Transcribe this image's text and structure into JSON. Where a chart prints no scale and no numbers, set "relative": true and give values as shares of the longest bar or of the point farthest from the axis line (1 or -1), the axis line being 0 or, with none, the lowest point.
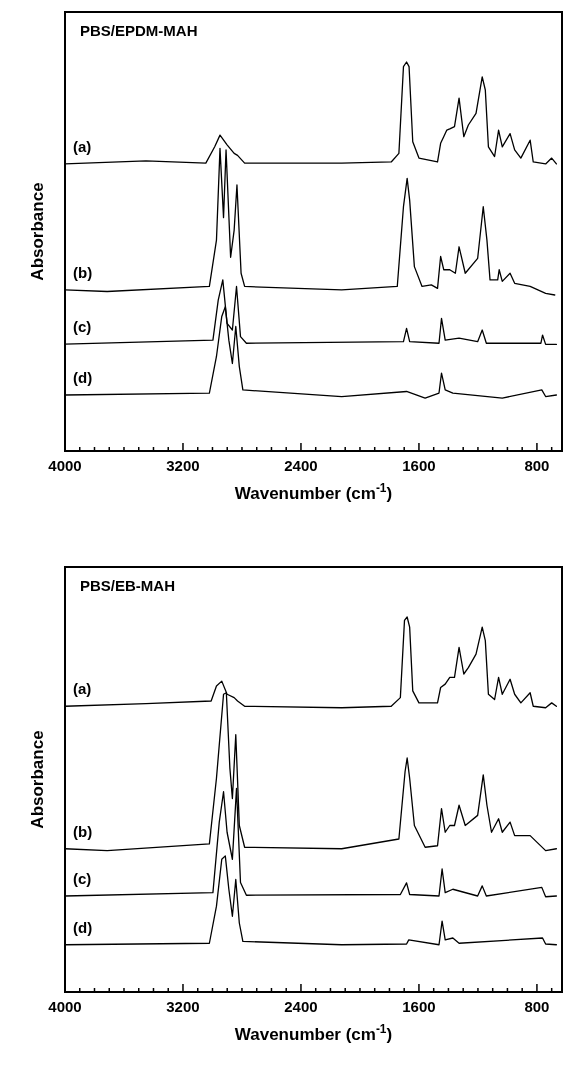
{
  "chart_data": [
    {
      "type": "line",
      "title": "PBS/EPDM-MAH",
      "xlabel": "Wavenumber (cm$^{-1}$)",
      "ylabel": "Absorbance",
      "relative": true,
      "xlim": [
        4000,
        630
      ],
      "xticks": [
        4000,
        {
          "value": 3900,
          "label": null
        },
        {
          "value": 3800,
          "label": null
        },
        {
          "value": 3700,
          "label": null
        },
        {
          "value": 3600,
          "label": null
        },
        {
          "value": 3500,
          "label": null
        },
        {
          "value": 3400,
          "label": null
        },
        {
          "value": 3300,
          "label": null
        },
        3200,
        {
          "value": 3100,
          "label": null
        },
        {
          "value": 3000,
          "label": null
        },
        {
          "value": 2900,
          "label": null
        },
        {
          "value": 2800,
          "label": null
        },
        {
          "value": 2700,
          "label": null
        },
        {
          "value": 2600,
          "label": null
        },
        {
          "value": 2500,
          "label": null
        },
        2400,
        {
          "value": 2300,
          "label": null
        },
        {
          "value": 2200,
          "label": null
        },
        {
          "value": 2100,
          "label": null
        },
        {
          "value": 2000,
          "label": null
        },
        {
          "value": 1900,
          "label": null
        },
        {
          "value": 1800,
          "label": null
        },
        {
          "value": 1700,
          "label": null
        },
        1600,
        {
          "value": 1500,
          "label": null
        },
        {
          "value": 1400,
          "label": null
        },
        {
          "value": 1300,
          "label": null
        },
        {
          "value": 1200,
          "label": null
        },
        {
          "value": 1100,
          "label": null
        },
        {
          "value": 1000,
          "label": null
        },
        {
          "value": 900,
          "label": null
        },
        800,
        {
          "value": 700,
          "label": null
        }
      ],
      "series": [
        {
          "name": "(a)",
          "color": "#000000",
          "x": [
            4000,
            3451,
            3045,
            2985,
            2949,
            2901,
            2853,
            2830,
            2782,
            2124,
            1788,
            1736,
            1705,
            1684,
            1667,
            1642,
            1600,
            1474,
            1453,
            1432,
            1411,
            1391,
            1359,
            1328,
            1296,
            1265,
            1213,
            1171,
            1150,
            1129,
            1087,
            1060,
            1035,
            982,
            951,
            909,
            846,
            825,
            741,
            700,
            668
          ],
          "values": [
            0.738,
            0.746,
            0.74,
            0.782,
            0.812,
            0.787,
            0.765,
            0.76,
            0.74,
            0.74,
            0.743,
            0.765,
            0.988,
            1.0,
            0.988,
            0.795,
            0.753,
            0.743,
            0.791,
            0.808,
            0.825,
            0.828,
            0.834,
            0.907,
            0.808,
            0.838,
            0.868,
            0.962,
            0.928,
            0.782,
            0.757,
            0.825,
            0.782,
            0.816,
            0.774,
            0.753,
            0.799,
            0.743,
            0.738,
            0.753,
            0.738
          ]
        },
        {
          "name": "(b)",
          "color": "#000000",
          "x": [
            4000,
            3714,
            3021,
            2973,
            2949,
            2925,
            2908,
            2877,
            2853,
            2834,
            2806,
            2782,
            2124,
            1747,
            1705,
            1680,
            1663,
            1631,
            1579,
            1516,
            1474,
            1453,
            1432,
            1391,
            1353,
            1328,
            1286,
            1202,
            1164,
            1139,
            1118,
            1066,
            1056,
            1035,
            982,
            951,
            846,
            741,
            679
          ],
          "values": [
            0.414,
            0.41,
            0.423,
            0.542,
            0.778,
            0.6,
            0.774,
            0.498,
            0.568,
            0.684,
            0.457,
            0.423,
            0.414,
            0.423,
            0.628,
            0.701,
            0.645,
            0.474,
            0.423,
            0.427,
            0.418,
            0.5,
            0.466,
            0.466,
            0.457,
            0.525,
            0.457,
            0.495,
            0.628,
            0.542,
            0.44,
            0.44,
            0.466,
            0.436,
            0.457,
            0.431,
            0.423,
            0.405,
            0.401
          ]
        },
        {
          "name": "(c)",
          "color": "#000000",
          "x": [
            4000,
            2997,
            2961,
            2930,
            2901,
            2865,
            2837,
            2810,
            2770,
            1705,
            1684,
            1663,
            1464,
            1447,
            1422,
            1328,
            1202,
            1171,
            1143,
            773,
            762,
            741,
            668
          ],
          "values": [
            0.275,
            0.285,
            0.388,
            0.44,
            0.328,
            0.311,
            0.423,
            0.294,
            0.277,
            0.281,
            0.315,
            0.281,
            0.277,
            0.341,
            0.285,
            0.29,
            0.281,
            0.311,
            0.277,
            0.277,
            0.298,
            0.274,
            0.274
          ]
        },
        {
          "name": "(d)",
          "color": "#000000",
          "x": [
            4000,
            3021,
            2973,
            2937,
            2913,
            2889,
            2865,
            2842,
            2818,
            2794,
            2124,
            1684,
            1558,
            1464,
            1447,
            1422,
            1370,
            1035,
            767,
            741,
            668
          ],
          "values": [
            0.144,
            0.149,
            0.243,
            0.346,
            0.371,
            0.285,
            0.225,
            0.32,
            0.217,
            0.157,
            0.14,
            0.153,
            0.136,
            0.149,
            0.2,
            0.157,
            0.149,
            0.136,
            0.157,
            0.14,
            0.144
          ]
        }
      ]
    },
    {
      "type": "line",
      "title": "PBS/EB-MAH",
      "xlabel": "Wavenumber (cm$^{-1}$)",
      "ylabel": "Absorbance",
      "relative": true,
      "xlim": [
        4000,
        630
      ],
      "xticks": [
        4000,
        {
          "value": 3900,
          "label": null
        },
        {
          "value": 3800,
          "label": null
        },
        {
          "value": 3700,
          "label": null
        },
        {
          "value": 3600,
          "label": null
        },
        {
          "value": 3500,
          "label": null
        },
        {
          "value": 3400,
          "label": null
        },
        {
          "value": 3300,
          "label": null
        },
        3200,
        {
          "value": 3100,
          "label": null
        },
        {
          "value": 3000,
          "label": null
        },
        {
          "value": 2900,
          "label": null
        },
        {
          "value": 2800,
          "label": null
        },
        {
          "value": 2700,
          "label": null
        },
        {
          "value": 2600,
          "label": null
        },
        {
          "value": 2500,
          "label": null
        },
        2400,
        {
          "value": 2300,
          "label": null
        },
        {
          "value": 2200,
          "label": null
        },
        {
          "value": 2100,
          "label": null
        },
        {
          "value": 2000,
          "label": null
        },
        {
          "value": 1900,
          "label": null
        },
        {
          "value": 1800,
          "label": null
        },
        {
          "value": 1700,
          "label": null
        },
        1600,
        {
          "value": 1500,
          "label": null
        },
        {
          "value": 1400,
          "label": null
        },
        {
          "value": 1300,
          "label": null
        },
        {
          "value": 1200,
          "label": null
        },
        {
          "value": 1100,
          "label": null
        },
        {
          "value": 1000,
          "label": null
        },
        {
          "value": 900,
          "label": null
        },
        800,
        {
          "value": 700,
          "label": null
        }
      ],
      "series": [
        {
          "name": "(a)",
          "color": "#000000",
          "x": [
            4000,
            3451,
            3009,
            2973,
            2937,
            2901,
            2853,
            2830,
            2782,
            2124,
            1788,
            1726,
            1698,
            1680,
            1663,
            1642,
            1600,
            1474,
            1453,
            1422,
            1391,
            1359,
            1328,
            1296,
            1265,
            1213,
            1171,
            1150,
            1129,
            1087,
            1060,
            1035,
            982,
            951,
            909,
            846,
            825,
            741,
            700,
            668
          ],
          "values": [
            0.762,
            0.769,
            0.776,
            0.816,
            0.829,
            0.794,
            0.785,
            0.776,
            0.762,
            0.758,
            0.762,
            0.785,
            0.991,
            1.0,
            0.973,
            0.803,
            0.771,
            0.771,
            0.812,
            0.821,
            0.839,
            0.839,
            0.919,
            0.848,
            0.865,
            0.901,
            0.973,
            0.937,
            0.794,
            0.78,
            0.839,
            0.794,
            0.834,
            0.794,
            0.771,
            0.798,
            0.762,
            0.758,
            0.771,
            0.762
          ]
        },
        {
          "name": "(b)",
          "color": "#000000",
          "x": [
            4000,
            3714,
            3021,
            2973,
            2925,
            2906,
            2882,
            2865,
            2842,
            2818,
            2782,
            2124,
            1736,
            1694,
            1680,
            1663,
            1631,
            1558,
            1474,
            1447,
            1422,
            1391,
            1359,
            1328,
            1286,
            1202,
            1164,
            1139,
            1108,
            1060,
            1035,
            982,
            951,
            846,
            741,
            668
          ],
          "values": [
            0.382,
            0.377,
            0.395,
            0.57,
            0.794,
            0.798,
            0.597,
            0.516,
            0.686,
            0.444,
            0.386,
            0.382,
            0.408,
            0.588,
            0.624,
            0.57,
            0.444,
            0.386,
            0.39,
            0.489,
            0.426,
            0.444,
            0.444,
            0.498,
            0.444,
            0.471,
            0.579,
            0.498,
            0.426,
            0.462,
            0.426,
            0.453,
            0.417,
            0.417,
            0.377,
            0.382
          ]
        },
        {
          "name": "(c)",
          "color": "#000000",
          "x": [
            4000,
            2997,
            2954,
            2925,
            2901,
            2865,
            2837,
            2810,
            2770,
            1726,
            1684,
            1663,
            1464,
            1443,
            1422,
            1370,
            1202,
            1171,
            1143,
            767,
            741,
            668
          ],
          "values": [
            0.256,
            0.265,
            0.453,
            0.534,
            0.426,
            0.354,
            0.543,
            0.292,
            0.258,
            0.26,
            0.291,
            0.26,
            0.256,
            0.328,
            0.265,
            0.274,
            0.256,
            0.283,
            0.256,
            0.279,
            0.254,
            0.256
          ]
        },
        {
          "name": "(d)",
          "color": "#000000",
          "x": [
            4000,
            3021,
            2973,
            2937,
            2913,
            2889,
            2865,
            2842,
            2818,
            2794,
            2124,
            1684,
            1669,
            1464,
            1443,
            1422,
            1370,
            1328,
            762,
            741,
            668
          ],
          "values": [
            0.126,
            0.13,
            0.229,
            0.354,
            0.363,
            0.274,
            0.202,
            0.3,
            0.184,
            0.135,
            0.126,
            0.128,
            0.139,
            0.126,
            0.189,
            0.139,
            0.144,
            0.13,
            0.144,
            0.128,
            0.126
          ]
        }
      ]
    }
  ]
}
